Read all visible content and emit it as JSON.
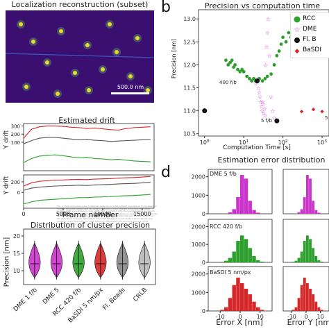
{
  "panel_a": {
    "image_title": "Localization reconstruction (subset)",
    "scalebar_label": "500.0 nm",
    "drift_title": "Estimated drift",
    "drift_xlabel": "Frame number",
    "drift_ylabel_top": "Y drift",
    "drift_ylabel_bottom": "Y drift",
    "precision_title": "Distribution of cluster precision",
    "precision_ylabel": "Precision [nm]"
  },
  "panel_b": {
    "letter": "b",
    "title": "Precision vs computation time",
    "xlabel": "Computation Time [s]",
    "ylabel": "Precision [nm]",
    "legend": [
      "RCC",
      "DME",
      "Fl. B",
      "BaSDI"
    ],
    "annotations": [
      "400 f/b",
      "5 f/b",
      "5"
    ]
  },
  "panel_d": {
    "letter": "d",
    "title": "Estimation error distribution",
    "row_labels": [
      "DME 5 f/b",
      "RCC 420 f/b",
      "BaSDI 5 nm/px"
    ],
    "xlabel_left": "Error X [nm]",
    "xlabel_right": "Error Y [nm]"
  },
  "colors": {
    "rcc": "#2ca02c",
    "dme": "#cc33cc",
    "flb": "#111111",
    "basdi": "#d62728",
    "image_bg": "#3b0f70"
  },
  "chart_data": [
    {
      "type": "line",
      "title": "Estimated drift",
      "xlabel": "Frame number",
      "x_ticks": [
        "0",
        "5000",
        "10000",
        "15000"
      ],
      "y_ticks": [
        "100",
        "200",
        "300"
      ],
      "xlim": [
        0,
        16500
      ],
      "ylim": [
        -250,
        330
      ],
      "series": [
        {
          "color": "#d62728",
          "x": [
            0,
            1000,
            2000,
            3000,
            4000,
            5000,
            6000,
            7000,
            8000,
            9000,
            10000,
            11000,
            12000,
            13000,
            14000,
            15000,
            16000
          ],
          "y": [
            150,
            260,
            290,
            300,
            300,
            295,
            285,
            280,
            270,
            275,
            265,
            255,
            250,
            270,
            280,
            285,
            290
          ]
        },
        {
          "color": "#555555",
          "x": [
            0,
            1000,
            2000,
            3000,
            4000,
            5000,
            6000,
            7000,
            8000,
            9000,
            10000,
            11000,
            12000,
            13000,
            14000,
            15000,
            16000
          ],
          "y": [
            80,
            120,
            150,
            160,
            160,
            150,
            140,
            130,
            135,
            125,
            120,
            110,
            115,
            120,
            125,
            130,
            135
          ]
        },
        {
          "color": "#2ca02c",
          "x": [
            0,
            1000,
            2000,
            3000,
            4000,
            5000,
            6000,
            7000,
            8000,
            9000,
            10000,
            11000,
            12000,
            13000,
            14000,
            15000,
            16000
          ],
          "y": [
            -150,
            -100,
            -70,
            -60,
            -55,
            -65,
            -80,
            -90,
            -85,
            -100,
            -105,
            -115,
            -110,
            -120,
            -130,
            -135,
            -140
          ]
        }
      ]
    },
    {
      "type": "line",
      "title": "",
      "xlabel": "Frame number",
      "x_ticks": [
        "0",
        "5000",
        "10000",
        "15000"
      ],
      "y_ticks": [
        "200",
        "0"
      ],
      "xlim": [
        0,
        16500
      ],
      "ylim": [
        -300,
        330
      ],
      "series": [
        {
          "color": "#d62728",
          "x": [
            0,
            1000,
            2000,
            3000,
            4000,
            5000,
            6000,
            7000,
            8000,
            9000,
            10000,
            11000,
            12000,
            13000,
            14000,
            15000,
            16000
          ],
          "y": [
            120,
            180,
            210,
            220,
            230,
            235,
            240,
            245,
            240,
            250,
            255,
            260,
            270,
            275,
            280,
            290,
            300
          ]
        },
        {
          "color": "#555555",
          "x": [
            0,
            1000,
            2000,
            3000,
            4000,
            5000,
            6000,
            7000,
            8000,
            9000,
            10000,
            11000,
            12000,
            13000,
            14000,
            15000,
            16000
          ],
          "y": [
            40,
            80,
            100,
            110,
            120,
            125,
            130,
            135,
            130,
            140,
            145,
            150,
            160,
            165,
            170,
            180,
            190
          ]
        },
        {
          "color": "#2ca02c",
          "x": [
            0,
            1000,
            2000,
            3000,
            4000,
            5000,
            6000,
            7000,
            8000,
            9000,
            10000,
            11000,
            12000,
            13000,
            14000,
            15000,
            16000
          ],
          "y": [
            -220,
            -180,
            -150,
            -140,
            -130,
            -120,
            -110,
            -100,
            -100,
            -90,
            -85,
            -80,
            -70,
            -65,
            -60,
            -50,
            -40
          ]
        }
      ]
    },
    {
      "type": "violin",
      "title": "Distribution of cluster precision",
      "ylabel": "Precision [nm]",
      "categories": [
        "DME 1 f/b",
        "DME 5 f/b",
        "RCC 420 f/b",
        "BaSDI 5 nm/px",
        "Fl. Beads",
        "CRLB"
      ],
      "category_labels_visible": [
        "DME 1 f/b",
        "DME 5",
        "RCC 420 f/b",
        "BaSDI 5 nm/px",
        "Fl. Beads",
        "CRLB"
      ],
      "y_ticks": [
        "10",
        "15",
        "20"
      ],
      "ylim": [
        6,
        22
      ],
      "medians": [
        12,
        12,
        12,
        12,
        12,
        12
      ],
      "colors": [
        "#cc33cc",
        "#cc33cc",
        "#2ca02c",
        "#d62728",
        "#888888",
        "#bbbbbb"
      ]
    },
    {
      "type": "scatter",
      "title": "Precision vs computation time",
      "xlabel": "Computation Time [s]",
      "ylabel": "Precision [nm]",
      "x_scale": "log",
      "x_ticks": [
        "10^0",
        "10^1",
        "10^2",
        "10^3"
      ],
      "y_ticks": [
        "10.5",
        "11.0",
        "11.5",
        "12.0",
        "12.5",
        "13.0"
      ],
      "xlim": [
        0.7,
        1500
      ],
      "ylim": [
        10.45,
        13.2
      ],
      "series": [
        {
          "name": "RCC",
          "marker": "circle",
          "color": "#2ca02c",
          "x": [
            3.5,
            4,
            4.5,
            5,
            5.5,
            6,
            7,
            8,
            9,
            10,
            12,
            14,
            16,
            18,
            20,
            25,
            30,
            35,
            40,
            50,
            60,
            70,
            80,
            90,
            100,
            120,
            140,
            160,
            200,
            250,
            300
          ],
          "y": [
            12.1,
            12.0,
            12.05,
            12.1,
            11.95,
            12.0,
            11.9,
            11.85,
            11.9,
            11.85,
            11.75,
            11.7,
            11.65,
            11.7,
            11.65,
            11.7,
            11.65,
            11.7,
            11.75,
            11.8,
            12.0,
            12.2,
            12.3,
            12.45,
            12.6,
            12.5,
            12.7,
            12.6,
            12.55,
            12.65,
            12.7
          ]
        },
        {
          "name": "DME",
          "marker": "star",
          "color": "#cc33cc",
          "x": [
            20,
            22,
            24,
            25,
            26,
            27,
            28,
            29,
            30,
            31,
            32,
            34,
            35,
            36,
            38,
            40,
            42,
            45,
            50,
            55,
            60,
            70
          ],
          "y": [
            11.6,
            11.7,
            11.5,
            11.4,
            11.3,
            11.2,
            11.1,
            11.0,
            11.2,
            11.15,
            10.95,
            11.05,
            10.9,
            12.0,
            12.4,
            12.7,
            13.0,
            12.2,
            11.3,
            11.0,
            10.85,
            10.8
          ]
        },
        {
          "name": "Fl. B",
          "marker": "circle",
          "color": "#111111",
          "x": [
            1.0,
            22,
            70
          ],
          "y": [
            11.0,
            11.65,
            10.78
          ]
        },
        {
          "name": "BaSDI",
          "marker": "diamond",
          "color": "#d62728",
          "x": [
            300,
            600,
            1000
          ],
          "y": [
            11.0,
            11.05,
            11.0
          ]
        }
      ]
    },
    {
      "type": "histogram",
      "title": "Estimation error distribution",
      "y_ticks": [
        "0",
        "1000",
        "2000"
      ],
      "x_ticks": [
        "-10",
        "0",
        "10"
      ],
      "xlabel_left": "Error X [nm]",
      "xlabel_right": "Error Y [nm]",
      "rows": [
        {
          "label": "DME 5 f/b",
          "color": "#cc33cc",
          "ylim": [
            0,
            2400
          ],
          "bins": [
            -6,
            -4,
            -2,
            0,
            2,
            4,
            6,
            8
          ],
          "counts": [
            80,
            250,
            900,
            2100,
            1900,
            700,
            200,
            60
          ]
        },
        {
          "label": "RCC 420 f/b",
          "color": "#2ca02c",
          "ylim": [
            0,
            2400
          ],
          "bins": [
            -10,
            -8,
            -6,
            -4,
            -2,
            0,
            2,
            4,
            6,
            8,
            10,
            12
          ],
          "counts": [
            30,
            90,
            250,
            600,
            1200,
            1500,
            1300,
            800,
            350,
            120,
            40,
            10
          ]
        },
        {
          "label": "BaSDI 5 nm/px",
          "color": "#d62728",
          "ylim": [
            0,
            2400
          ],
          "bins": [
            -10,
            -8,
            -6,
            -4,
            -2,
            0,
            2,
            4,
            6,
            8,
            10,
            12
          ],
          "counts": [
            60,
            200,
            700,
            1400,
            1800,
            1500,
            1200,
            900,
            500,
            200,
            60,
            20
          ]
        }
      ]
    }
  ]
}
